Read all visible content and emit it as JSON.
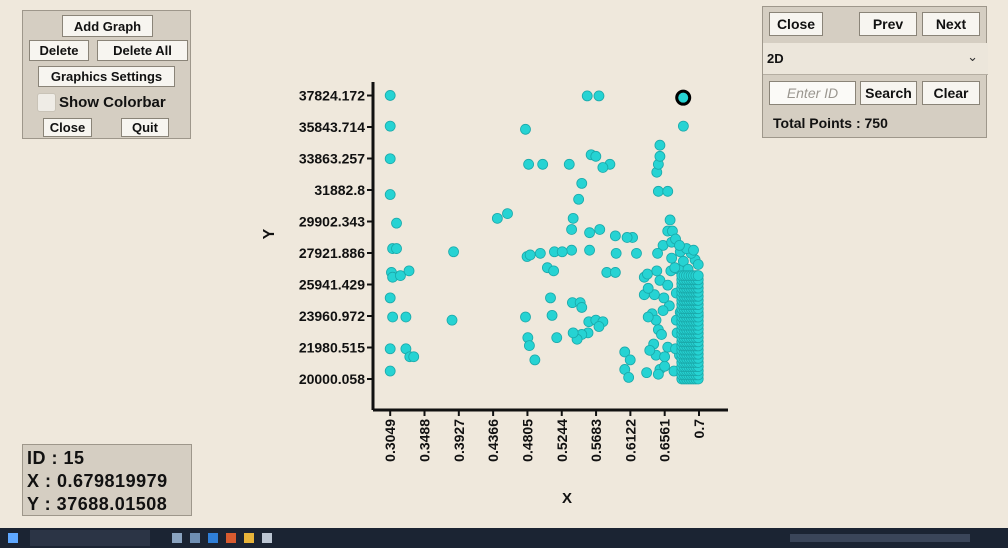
{
  "controls": {
    "add_graph": "Add Graph",
    "delete": "Delete",
    "delete_all": "Delete All",
    "graphics_settings": "Graphics Settings",
    "show_colorbar": "Show Colorbar",
    "close": "Close",
    "quit": "Quit"
  },
  "nav": {
    "close": "Close",
    "prev": "Prev",
    "next": "Next",
    "mode_selected": "2D",
    "id_placeholder": "Enter ID",
    "search": "Search",
    "clear": "Clear",
    "total_points": "Total Points : 750"
  },
  "info": {
    "id": "ID : 15",
    "x": "X : 0.679819979",
    "y": "Y : 37688.01508"
  },
  "chart_data": {
    "type": "scatter",
    "xlabel": "X",
    "ylabel": "Y",
    "x_ticks": [
      "0.3049",
      "0.3488",
      "0.3927",
      "0.4366",
      "0.4805",
      "0.5244",
      "0.5683",
      "0.6122",
      "0.6561",
      "0.7"
    ],
    "y_ticks": [
      "20000.058",
      "21980.515",
      "23960.972",
      "25941.429",
      "27921.886",
      "29902.343",
      "31882.8",
      "33863.257",
      "35843.714",
      "37824.172"
    ],
    "xlim": [
      0.2829,
      0.7371
    ],
    "ylim": [
      18050,
      38800
    ],
    "point_color": "#26d3d3",
    "highlight": {
      "x": 0.6798,
      "y": 37688.015
    },
    "points": [
      [
        0.3049,
        37830
      ],
      [
        0.3049,
        35900
      ],
      [
        0.3049,
        33850
      ],
      [
        0.3049,
        31600
      ],
      [
        0.313,
        29800
      ],
      [
        0.308,
        28200
      ],
      [
        0.313,
        28200
      ],
      [
        0.3065,
        26700
      ],
      [
        0.308,
        26400
      ],
      [
        0.318,
        26500
      ],
      [
        0.329,
        26800
      ],
      [
        0.3049,
        25100
      ],
      [
        0.308,
        23900
      ],
      [
        0.325,
        23900
      ],
      [
        0.3049,
        21900
      ],
      [
        0.325,
        21900
      ],
      [
        0.33,
        21400
      ],
      [
        0.335,
        21400
      ],
      [
        0.3049,
        20500
      ],
      [
        0.386,
        28000
      ],
      [
        0.384,
        23700
      ],
      [
        0.442,
        30100
      ],
      [
        0.455,
        30400
      ],
      [
        0.478,
        35700
      ],
      [
        0.482,
        33500
      ],
      [
        0.5,
        33500
      ],
      [
        0.48,
        27700
      ],
      [
        0.484,
        27800
      ],
      [
        0.497,
        27900
      ],
      [
        0.506,
        27000
      ],
      [
        0.514,
        26800
      ],
      [
        0.51,
        25100
      ],
      [
        0.478,
        23900
      ],
      [
        0.481,
        22600
      ],
      [
        0.483,
        22100
      ],
      [
        0.49,
        21200
      ],
      [
        0.512,
        24000
      ],
      [
        0.518,
        22600
      ],
      [
        0.534,
        33500
      ],
      [
        0.55,
        32300
      ],
      [
        0.546,
        31300
      ],
      [
        0.562,
        34100
      ],
      [
        0.568,
        34000
      ],
      [
        0.586,
        33500
      ],
      [
        0.577,
        33300
      ],
      [
        0.539,
        30100
      ],
      [
        0.537,
        29400
      ],
      [
        0.537,
        28100
      ],
      [
        0.515,
        28000
      ],
      [
        0.525,
        28000
      ],
      [
        0.56,
        29200
      ],
      [
        0.56,
        28100
      ],
      [
        0.573,
        29400
      ],
      [
        0.593,
        29000
      ],
      [
        0.594,
        27900
      ],
      [
        0.582,
        26700
      ],
      [
        0.593,
        26700
      ],
      [
        0.538,
        24800
      ],
      [
        0.548,
        24800
      ],
      [
        0.55,
        24500
      ],
      [
        0.559,
        23600
      ],
      [
        0.568,
        23700
      ],
      [
        0.577,
        23600
      ],
      [
        0.558,
        22900
      ],
      [
        0.572,
        23300
      ],
      [
        0.55,
        22800
      ],
      [
        0.544,
        22500
      ],
      [
        0.539,
        22900
      ],
      [
        0.557,
        37800
      ],
      [
        0.572,
        37800
      ],
      [
        0.605,
        21700
      ],
      [
        0.605,
        20600
      ],
      [
        0.61,
        20100
      ],
      [
        0.612,
        21200
      ],
      [
        0.615,
        28900
      ],
      [
        0.608,
        28900
      ],
      [
        0.62,
        27900
      ],
      [
        0.63,
        26400
      ],
      [
        0.63,
        25300
      ],
      [
        0.646,
        33000
      ],
      [
        0.648,
        33500
      ],
      [
        0.65,
        34000
      ],
      [
        0.65,
        34700
      ],
      [
        0.648,
        31800
      ],
      [
        0.66,
        31800
      ],
      [
        0.663,
        30000
      ],
      [
        0.66,
        29300
      ],
      [
        0.654,
        28400
      ],
      [
        0.647,
        27900
      ],
      [
        0.646,
        26800
      ],
      [
        0.65,
        26200
      ],
      [
        0.643,
        25300
      ],
      [
        0.64,
        24100
      ],
      [
        0.645,
        23700
      ],
      [
        0.648,
        23100
      ],
      [
        0.642,
        22200
      ],
      [
        0.645,
        21500
      ],
      [
        0.65,
        20600
      ],
      [
        0.648,
        20300
      ],
      [
        0.656,
        20800
      ],
      [
        0.66,
        22000
      ],
      [
        0.662,
        24600
      ],
      [
        0.66,
        25900
      ],
      [
        0.664,
        26800
      ],
      [
        0.665,
        27600
      ],
      [
        0.665,
        28600
      ],
      [
        0.666,
        29300
      ],
      [
        0.6798,
        37688
      ],
      [
        0.68,
        35900
      ],
      [
        0.633,
        20400
      ],
      [
        0.637,
        21800
      ],
      [
        0.635,
        23900
      ],
      [
        0.635,
        25700
      ],
      [
        0.634,
        26600
      ],
      [
        0.655,
        25100
      ],
      [
        0.654,
        24300
      ],
      [
        0.652,
        22800
      ],
      [
        0.656,
        21400
      ],
      [
        0.668,
        20500
      ],
      [
        0.675,
        21500
      ],
      [
        0.672,
        22900
      ],
      [
        0.676,
        24200
      ],
      [
        0.678,
        25700
      ],
      [
        0.674,
        26900
      ],
      [
        0.676,
        28000
      ],
      [
        0.68,
        27400
      ],
      [
        0.683,
        26400
      ],
      [
        0.685,
        25400
      ],
      [
        0.688,
        24500
      ],
      [
        0.69,
        23600
      ],
      [
        0.692,
        22400
      ],
      [
        0.694,
        21300
      ],
      [
        0.687,
        20200
      ],
      [
        0.695,
        20300
      ],
      [
        0.698,
        21100
      ],
      [
        0.696,
        22700
      ],
      [
        0.699,
        24000
      ],
      [
        0.697,
        25300
      ],
      [
        0.698,
        26500
      ],
      [
        0.695,
        27500
      ],
      [
        0.69,
        27900
      ],
      [
        0.686,
        26900
      ],
      [
        0.682,
        25000
      ],
      [
        0.679,
        23300
      ],
      [
        0.68,
        20900
      ],
      [
        0.69,
        20600
      ],
      [
        0.67,
        21900
      ],
      [
        0.671,
        23700
      ],
      [
        0.671,
        25400
      ],
      [
        0.669,
        27000
      ],
      [
        0.684,
        28200
      ],
      [
        0.67,
        28800
      ],
      [
        0.675,
        28400
      ],
      [
        0.699,
        27200
      ],
      [
        0.693,
        28100
      ]
    ]
  }
}
